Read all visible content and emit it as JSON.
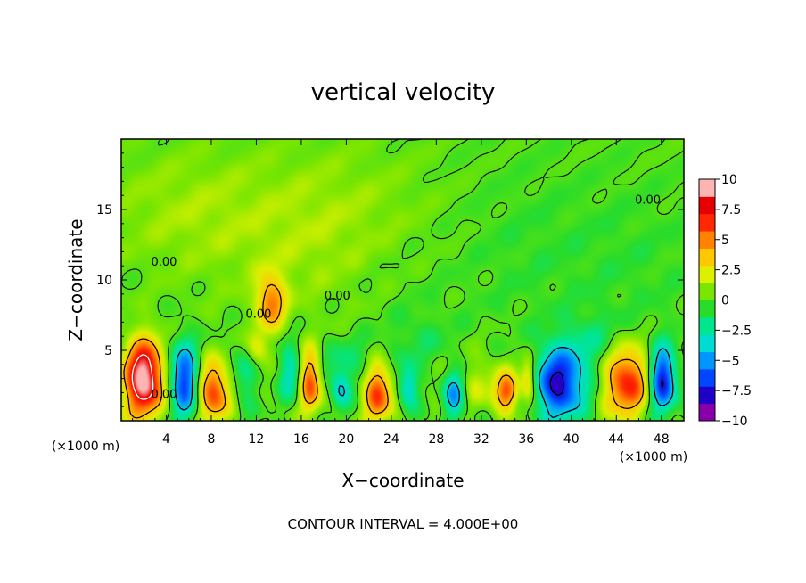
{
  "chart_data": {
    "type": "heatmap",
    "title": "vertical velocity",
    "xlabel": "X−coordinate",
    "ylabel": "Z−coordinate",
    "x_unit": "(×1000 m)",
    "y_unit": "(×1000 m)",
    "xlim": [
      0,
      50
    ],
    "ylim": [
      0,
      20
    ],
    "x_ticks": [
      4,
      8,
      12,
      16,
      20,
      24,
      28,
      32,
      36,
      40,
      44,
      48
    ],
    "y_ticks": [
      5,
      10,
      15
    ],
    "colorbar": {
      "ticks": [
        10,
        7.5,
        5,
        2.5,
        0,
        -2.5,
        -5,
        -7.5,
        -10
      ],
      "tick_labels": [
        "10",
        "7.5",
        "5",
        "2.5",
        "0",
        "−2.5",
        "−5",
        "−7.5",
        "−10"
      ],
      "min": -10,
      "max": 10,
      "colors": [
        "#8a00a8",
        "#1f00c8",
        "#0046ff",
        "#0096ff",
        "#00dcd2",
        "#00e68c",
        "#2adc2a",
        "#7ae600",
        "#dcf000",
        "#ffc800",
        "#ff8200",
        "#ff2800",
        "#e60000",
        "#ffb4b4"
      ]
    },
    "contour_interval_text": "CONTOUR INTERVAL = 4.000E+00",
    "contour_labels": [
      {
        "text": "0.00",
        "x": 3.8,
        "z": 11.0
      },
      {
        "text": "0.00",
        "x": 19.2,
        "z": 8.6
      },
      {
        "text": "0.00",
        "x": 46.8,
        "z": 15.4
      },
      {
        "text": "0.00",
        "x": 3.8,
        "z": 1.6
      },
      {
        "text": "0.00",
        "x": 12.2,
        "z": 7.3
      }
    ],
    "features": [
      {
        "x": 2.0,
        "z": 3.0,
        "sx": 1.2,
        "sz": 1.9,
        "value": 11.0
      },
      {
        "x": 5.6,
        "z": 2.9,
        "sx": 0.9,
        "sz": 1.8,
        "value": -7.5
      },
      {
        "x": 8.2,
        "z": 2.1,
        "sx": 1.0,
        "sz": 1.5,
        "value": 6.8
      },
      {
        "x": 11.0,
        "z": 3.4,
        "sx": 0.8,
        "sz": 1.5,
        "value": -2.5
      },
      {
        "x": 13.3,
        "z": 8.4,
        "sx": 0.9,
        "sz": 1.4,
        "value": 5.2
      },
      {
        "x": 12.0,
        "z": 5.0,
        "sx": 0.7,
        "sz": 0.9,
        "value": 3.0
      },
      {
        "x": 15.0,
        "z": 3.5,
        "sx": 0.7,
        "sz": 1.4,
        "value": -3.5
      },
      {
        "x": 16.8,
        "z": 2.8,
        "sx": 0.7,
        "sz": 1.6,
        "value": 6.5
      },
      {
        "x": 19.5,
        "z": 2.2,
        "sx": 0.6,
        "sz": 0.9,
        "value": -4.0
      },
      {
        "x": 22.8,
        "z": 2.0,
        "sx": 0.9,
        "sz": 1.5,
        "value": 6.8
      },
      {
        "x": 25.5,
        "z": 2.4,
        "sx": 0.6,
        "sz": 1.0,
        "value": -4.5
      },
      {
        "x": 29.6,
        "z": 1.8,
        "sx": 0.7,
        "sz": 1.2,
        "value": -6.0
      },
      {
        "x": 34.3,
        "z": 2.0,
        "sx": 0.7,
        "sz": 0.9,
        "value": 5.5
      },
      {
        "x": 36.2,
        "z": 2.9,
        "sx": 0.5,
        "sz": 1.2,
        "value": 4.5
      },
      {
        "x": 38.9,
        "z": 2.6,
        "sx": 1.6,
        "sz": 1.8,
        "value": -8.5
      },
      {
        "x": 44.9,
        "z": 2.8,
        "sx": 1.4,
        "sz": 1.8,
        "value": 7.5
      },
      {
        "x": 48.1,
        "z": 2.9,
        "sx": 0.8,
        "sz": 1.6,
        "value": -8.5
      },
      {
        "x": 32.0,
        "z": 2.5,
        "sx": 2.5,
        "sz": 1.5,
        "value": 1.8
      },
      {
        "x": 20.0,
        "z": 4.2,
        "sx": 2.0,
        "sz": 1.2,
        "value": -1.8
      },
      {
        "x": 26.5,
        "z": 5.5,
        "sx": 2.0,
        "sz": 1.5,
        "value": -1.2
      },
      {
        "x": 42.0,
        "z": 5.5,
        "sx": 2.0,
        "sz": 1.5,
        "value": -1.6
      },
      {
        "x": 18.0,
        "z": 13.5,
        "sx": 7.0,
        "sz": 4.0,
        "value": 1.6
      },
      {
        "x": 5.0,
        "z": 15.0,
        "sx": 5.0,
        "sz": 3.0,
        "value": 1.1
      },
      {
        "x": 36.0,
        "z": 12.0,
        "sx": 5.0,
        "sz": 4.0,
        "value": -0.7
      },
      {
        "x": 46.0,
        "z": 11.0,
        "sx": 4.0,
        "sz": 4.0,
        "value": -0.6
      },
      {
        "x": 24.0,
        "z": 10.5,
        "sx": 4.0,
        "sz": 3.0,
        "value": -0.6
      }
    ]
  }
}
